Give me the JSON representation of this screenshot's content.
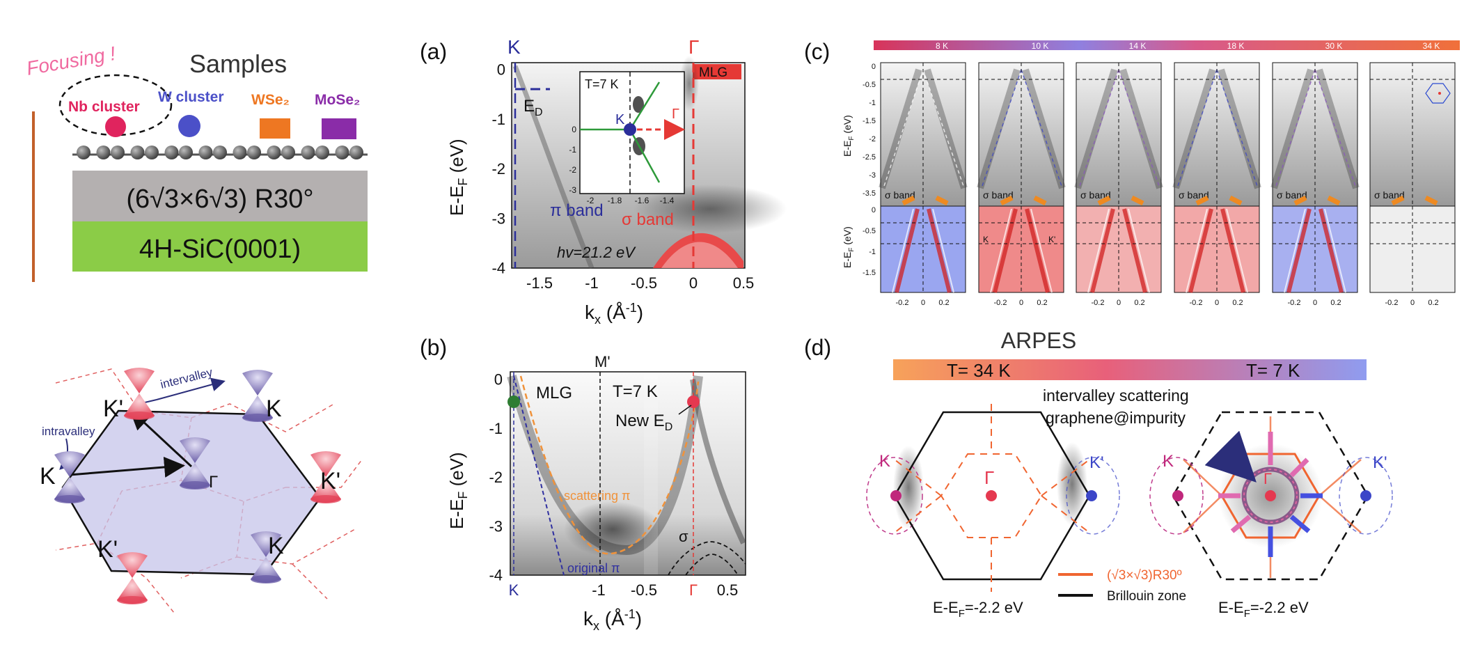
{
  "samples_panel": {
    "focusing": "Focusing !",
    "title": "Samples",
    "items": [
      {
        "label": "Nb cluster",
        "color": "#e0245e"
      },
      {
        "label": "W cluster",
        "color": "#4b50c8"
      },
      {
        "label": "WSe₂",
        "color": "#ee7722"
      },
      {
        "label": "MoSe₂",
        "color": "#8a2ca8"
      }
    ],
    "reconstruction": "(6√3×6√3) R30°",
    "substrate": "4H-SiC(0001)"
  },
  "bz_panel": {
    "intervalley": "intervalley",
    "intravalley": "intravalley",
    "points": {
      "K": "K",
      "Kp": "K'",
      "Gamma": "Γ"
    }
  },
  "panel_a": {
    "label": "(a)",
    "top_K": "K",
    "top_Gamma": "Γ",
    "mlg": "MLG",
    "ylabel": "E-E",
    "ylabel_sub": "F",
    "ylabel_unit": " (eV)",
    "xlabel": "k",
    "xlabel_sub": "x",
    "xlabel_unit": " (Å",
    "xlabel_sup": "-1",
    "xlabel_close": ")",
    "yticks": [
      "0",
      "-1",
      "-2",
      "-3",
      "-4"
    ],
    "xticks": [
      "-1.5",
      "-1",
      "-0.5",
      "0",
      "0.5"
    ],
    "ed": "E",
    "ed_sub": "D",
    "pi_band": "π band",
    "sigma_band": "σ band",
    "hv": "hv=21.2 eV",
    "inset": {
      "temp": "T=7 K",
      "K": "K",
      "Gamma": "Γ",
      "yticks": [
        "0",
        "-1",
        "-2",
        "-3"
      ],
      "xticks": [
        "-2",
        "-1.8",
        "-1.6",
        "-1.4"
      ]
    }
  },
  "panel_b": {
    "label": "(b)",
    "top_M": "M'",
    "mlg": "MLG",
    "temp": "T=7 K",
    "new_ed": "New E",
    "new_ed_sub": "D",
    "scattering": "scattering π",
    "original": "original π",
    "sigma": "σ",
    "yticks": [
      "0",
      "-1",
      "-2",
      "-3",
      "-4"
    ],
    "xticks": [
      "K",
      "-1",
      "-0.5",
      "Γ",
      "0.5"
    ],
    "ylabel": "E-E",
    "ylabel_sub": "F",
    "ylabel_unit": " (eV)",
    "xlabel": "k",
    "xlabel_sub": "x",
    "xlabel_unit": " (Å",
    "xlabel_sup": "-1",
    "xlabel_close": ")"
  },
  "panel_c": {
    "label": "(c)",
    "temps": [
      "8 K",
      "10 K",
      "14 K",
      "18 K",
      "30 K",
      "34 K"
    ],
    "ylabel": "E-E",
    "ylabel_sub": "F",
    "ylabel_unit": " (eV)",
    "yticks_top": [
      "0",
      "-0.5",
      "-1",
      "-1.5",
      "-2",
      "-2.5",
      "-3",
      "-3.5"
    ],
    "yticks_bottom": [
      "0",
      "-0.5",
      "-1",
      "-1.5"
    ],
    "xticks": [
      "-0.2",
      "0",
      "0.2"
    ],
    "sigma_band": "σ band",
    "K": "K",
    "Kp": "K'"
  },
  "panel_d": {
    "label": "(d)",
    "title": "ARPES",
    "t_left": "T= 34 K",
    "t_right": "T= 7 K",
    "line1": "intervalley scattering",
    "line2": "graphene@impurity",
    "K": "K",
    "Kp": "K'",
    "Gamma": "Γ",
    "energy_left": "E-E",
    "energy_sub": "F",
    "energy_val": "=-2.2 eV",
    "legend_r30": "(√3×√3)R30º",
    "legend_bz": "Brillouin zone"
  }
}
